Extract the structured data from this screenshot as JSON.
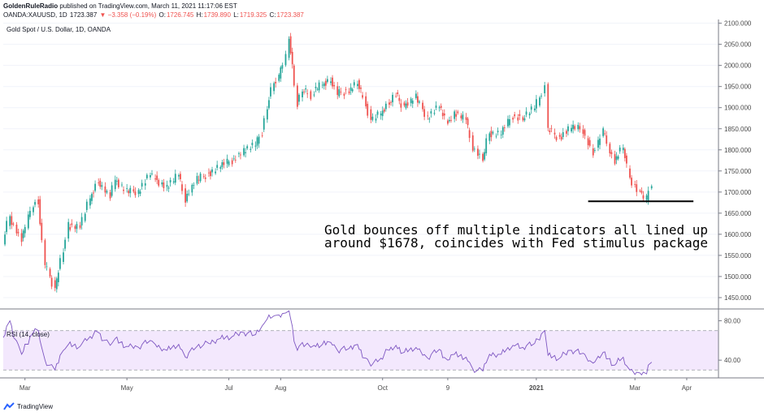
{
  "header": {
    "author": "GoldenRuleRadio",
    "published_text": " published on TradingView.com, March 11, 2021 11:17:06 EST",
    "symbol": "OANDA:XAUUSD, 1D",
    "last_price": "1723.387",
    "change": "▼ −3.358 (−0.19%)",
    "open_label": "O:",
    "open_value": "1726.745",
    "high_label": "H:",
    "high_value": "1739.890",
    "low_label": "L:",
    "low_value": "1719.325",
    "close_label": "C:",
    "close_value": "1723.387"
  },
  "chart_title": "Gold Spot / U.S. Dollar, 1D, OANDA",
  "annotation": [
    "Gold bounces off multiple indicators all lined up",
    "around $1678, coincides with Fed stimulus package"
  ],
  "footer": {
    "brand": "TradingView"
  },
  "colors": {
    "up": "#26a69a",
    "down": "#ef5350",
    "rsi_line": "#7e57c2",
    "rsi_fill": "#f3e8fd",
    "grid": "#f0f3fa",
    "axis_text": "#4a4a4a"
  },
  "chart_data": [
    {
      "type": "candlestick",
      "title": "Gold Spot / U.S. Dollar, 1D, OANDA",
      "x_ticks": [
        "Mar",
        "May",
        "Jul",
        "Aug",
        "Oct",
        "9",
        "2021",
        "Mar",
        "Apr"
      ],
      "y_ticks": [
        1450,
        1500,
        1550,
        1600,
        1650,
        1700,
        1750,
        1800,
        1850,
        1900,
        1950,
        2000,
        2050,
        2100
      ],
      "y_tick_labels": [
        "1450.000",
        "1500.000",
        "1550.000",
        "1600.000",
        "1650.000",
        "1700.000",
        "1750.000",
        "1800.000",
        "1850.000",
        "1900.000",
        "1950.000",
        "2000.000",
        "2050.000",
        "2100.000"
      ],
      "ylim": [
        1425,
        2105
      ],
      "x_range": [
        "2020-02-17",
        "2021-04-20"
      ],
      "support_line": {
        "value": 1678,
        "from": "2021-02-01",
        "to": "2021-04-05"
      },
      "series": [
        {
          "date": "2020-02-17",
          "close": 1582
        },
        {
          "date": "2020-02-21",
          "close": 1643
        },
        {
          "date": "2020-02-28",
          "close": 1585
        },
        {
          "date": "2020-03-06",
          "close": 1673
        },
        {
          "date": "2020-03-09",
          "close": 1680
        },
        {
          "date": "2020-03-13",
          "close": 1530
        },
        {
          "date": "2020-03-19",
          "close": 1470
        },
        {
          "date": "2020-03-24",
          "close": 1560
        },
        {
          "date": "2020-03-27",
          "close": 1620
        },
        {
          "date": "2020-04-03",
          "close": 1618
        },
        {
          "date": "2020-04-09",
          "close": 1685
        },
        {
          "date": "2020-04-14",
          "close": 1727
        },
        {
          "date": "2020-04-21",
          "close": 1685
        },
        {
          "date": "2020-04-24",
          "close": 1729
        },
        {
          "date": "2020-05-01",
          "close": 1700
        },
        {
          "date": "2020-05-08",
          "close": 1702
        },
        {
          "date": "2020-05-15",
          "close": 1743
        },
        {
          "date": "2020-05-18",
          "close": 1733
        },
        {
          "date": "2020-05-25",
          "close": 1711
        },
        {
          "date": "2020-06-01",
          "close": 1740
        },
        {
          "date": "2020-06-05",
          "close": 1684
        },
        {
          "date": "2020-06-12",
          "close": 1729
        },
        {
          "date": "2020-06-19",
          "close": 1743
        },
        {
          "date": "2020-06-26",
          "close": 1762
        },
        {
          "date": "2020-07-03",
          "close": 1775
        },
        {
          "date": "2020-07-10",
          "close": 1798
        },
        {
          "date": "2020-07-17",
          "close": 1810
        },
        {
          "date": "2020-07-21",
          "close": 1842
        },
        {
          "date": "2020-07-24",
          "close": 1902
        },
        {
          "date": "2020-07-28",
          "close": 1958
        },
        {
          "date": "2020-07-31",
          "close": 1975
        },
        {
          "date": "2020-08-04",
          "close": 2018
        },
        {
          "date": "2020-08-06",
          "close": 2063
        },
        {
          "date": "2020-08-07",
          "close": 2035
        },
        {
          "date": "2020-08-11",
          "close": 1911
        },
        {
          "date": "2020-08-14",
          "close": 1944
        },
        {
          "date": "2020-08-19",
          "close": 1929
        },
        {
          "date": "2020-08-21",
          "close": 1940
        },
        {
          "date": "2020-08-26",
          "close": 1954
        },
        {
          "date": "2020-08-31",
          "close": 1968
        },
        {
          "date": "2020-09-04",
          "close": 1933
        },
        {
          "date": "2020-09-11",
          "close": 1940
        },
        {
          "date": "2020-09-16",
          "close": 1959
        },
        {
          "date": "2020-09-21",
          "close": 1912
        },
        {
          "date": "2020-09-24",
          "close": 1868
        },
        {
          "date": "2020-09-30",
          "close": 1886
        },
        {
          "date": "2020-10-05",
          "close": 1913
        },
        {
          "date": "2020-10-09",
          "close": 1930
        },
        {
          "date": "2020-10-14",
          "close": 1902
        },
        {
          "date": "2020-10-21",
          "close": 1924
        },
        {
          "date": "2020-10-28",
          "close": 1878
        },
        {
          "date": "2020-11-04",
          "close": 1904
        },
        {
          "date": "2020-11-09",
          "close": 1862
        },
        {
          "date": "2020-11-13",
          "close": 1888
        },
        {
          "date": "2020-11-20",
          "close": 1871
        },
        {
          "date": "2020-11-24",
          "close": 1807
        },
        {
          "date": "2020-11-30",
          "close": 1777
        },
        {
          "date": "2020-12-04",
          "close": 1839
        },
        {
          "date": "2020-12-11",
          "close": 1839
        },
        {
          "date": "2020-12-18",
          "close": 1881
        },
        {
          "date": "2020-12-24",
          "close": 1876
        },
        {
          "date": "2020-12-31",
          "close": 1898
        },
        {
          "date": "2021-01-06",
          "close": 1950
        },
        {
          "date": "2021-01-08",
          "close": 1849
        },
        {
          "date": "2021-01-15",
          "close": 1828
        },
        {
          "date": "2021-01-22",
          "close": 1855
        },
        {
          "date": "2021-01-29",
          "close": 1847
        },
        {
          "date": "2021-02-04",
          "close": 1793
        },
        {
          "date": "2021-02-10",
          "close": 1842
        },
        {
          "date": "2021-02-17",
          "close": 1773
        },
        {
          "date": "2021-02-22",
          "close": 1808
        },
        {
          "date": "2021-02-26",
          "close": 1734
        },
        {
          "date": "2021-03-04",
          "close": 1697
        },
        {
          "date": "2021-03-08",
          "close": 1683
        },
        {
          "date": "2021-03-11",
          "close": 1723
        }
      ]
    },
    {
      "type": "line",
      "title": "RSI (14, close)",
      "y_ticks": [
        40,
        80
      ],
      "y_tick_labels": [
        "40.00",
        "80.00"
      ],
      "band": [
        30,
        70
      ],
      "ylim": [
        22,
        92
      ],
      "series": [
        {
          "name": "RSI (14, close)",
          "points": [
            {
              "date": "2020-02-17",
              "rsi": 63
            },
            {
              "date": "2020-02-21",
              "rsi": 80
            },
            {
              "date": "2020-02-28",
              "rsi": 46
            },
            {
              "date": "2020-03-06",
              "rsi": 68
            },
            {
              "date": "2020-03-09",
              "rsi": 70
            },
            {
              "date": "2020-03-13",
              "rsi": 40
            },
            {
              "date": "2020-03-19",
              "rsi": 30
            },
            {
              "date": "2020-03-24",
              "rsi": 50
            },
            {
              "date": "2020-03-27",
              "rsi": 56
            },
            {
              "date": "2020-04-03",
              "rsi": 54
            },
            {
              "date": "2020-04-09",
              "rsi": 64
            },
            {
              "date": "2020-04-14",
              "rsi": 68
            },
            {
              "date": "2020-04-21",
              "rsi": 55
            },
            {
              "date": "2020-04-24",
              "rsi": 62
            },
            {
              "date": "2020-05-01",
              "rsi": 54
            },
            {
              "date": "2020-05-08",
              "rsi": 53
            },
            {
              "date": "2020-05-15",
              "rsi": 60
            },
            {
              "date": "2020-05-18",
              "rsi": 56
            },
            {
              "date": "2020-05-25",
              "rsi": 50
            },
            {
              "date": "2020-06-01",
              "rsi": 56
            },
            {
              "date": "2020-06-05",
              "rsi": 43
            },
            {
              "date": "2020-06-12",
              "rsi": 54
            },
            {
              "date": "2020-06-19",
              "rsi": 57
            },
            {
              "date": "2020-06-26",
              "rsi": 62
            },
            {
              "date": "2020-07-03",
              "rsi": 64
            },
            {
              "date": "2020-07-10",
              "rsi": 68
            },
            {
              "date": "2020-07-17",
              "rsi": 66
            },
            {
              "date": "2020-07-21",
              "rsi": 75
            },
            {
              "date": "2020-07-24",
              "rsi": 82
            },
            {
              "date": "2020-07-28",
              "rsi": 85
            },
            {
              "date": "2020-07-31",
              "rsi": 86
            },
            {
              "date": "2020-08-04",
              "rsi": 88
            },
            {
              "date": "2020-08-06",
              "rsi": 90
            },
            {
              "date": "2020-08-07",
              "rsi": 82
            },
            {
              "date": "2020-08-11",
              "rsi": 50
            },
            {
              "date": "2020-08-14",
              "rsi": 58
            },
            {
              "date": "2020-08-19",
              "rsi": 53
            },
            {
              "date": "2020-08-21",
              "rsi": 55
            },
            {
              "date": "2020-08-26",
              "rsi": 56
            },
            {
              "date": "2020-08-31",
              "rsi": 58
            },
            {
              "date": "2020-09-04",
              "rsi": 50
            },
            {
              "date": "2020-09-11",
              "rsi": 52
            },
            {
              "date": "2020-09-16",
              "rsi": 56
            },
            {
              "date": "2020-09-21",
              "rsi": 42
            },
            {
              "date": "2020-09-24",
              "rsi": 34
            },
            {
              "date": "2020-09-30",
              "rsi": 42
            },
            {
              "date": "2020-10-05",
              "rsi": 50
            },
            {
              "date": "2020-10-09",
              "rsi": 55
            },
            {
              "date": "2020-10-14",
              "rsi": 48
            },
            {
              "date": "2020-10-21",
              "rsi": 53
            },
            {
              "date": "2020-10-28",
              "rsi": 42
            },
            {
              "date": "2020-11-04",
              "rsi": 51
            },
            {
              "date": "2020-11-09",
              "rsi": 40
            },
            {
              "date": "2020-11-13",
              "rsi": 46
            },
            {
              "date": "2020-11-20",
              "rsi": 43
            },
            {
              "date": "2020-11-24",
              "rsi": 31
            },
            {
              "date": "2020-11-30",
              "rsi": 29
            },
            {
              "date": "2020-12-04",
              "rsi": 46
            },
            {
              "date": "2020-12-11",
              "rsi": 46
            },
            {
              "date": "2020-12-18",
              "rsi": 55
            },
            {
              "date": "2020-12-24",
              "rsi": 53
            },
            {
              "date": "2020-12-31",
              "rsi": 57
            },
            {
              "date": "2021-01-06",
              "rsi": 70
            },
            {
              "date": "2021-01-08",
              "rsi": 45
            },
            {
              "date": "2021-01-15",
              "rsi": 42
            },
            {
              "date": "2021-01-22",
              "rsi": 50
            },
            {
              "date": "2021-01-29",
              "rsi": 47
            },
            {
              "date": "2021-02-04",
              "rsi": 37
            },
            {
              "date": "2021-02-10",
              "rsi": 48
            },
            {
              "date": "2021-02-17",
              "rsi": 35
            },
            {
              "date": "2021-02-22",
              "rsi": 43
            },
            {
              "date": "2021-02-26",
              "rsi": 30
            },
            {
              "date": "2021-03-04",
              "rsi": 27
            },
            {
              "date": "2021-03-08",
              "rsi": 26
            },
            {
              "date": "2021-03-11",
              "rsi": 38
            }
          ]
        }
      ]
    }
  ]
}
